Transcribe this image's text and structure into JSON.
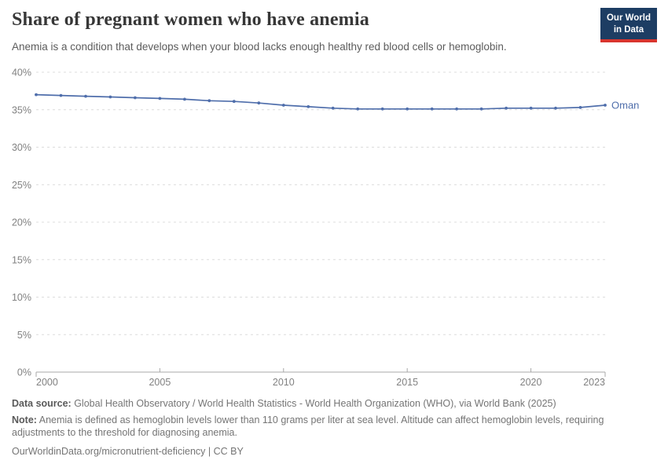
{
  "header": {
    "title": "Share of pregnant women who have anemia",
    "subtitle": "Anemia is a condition that develops when your blood lacks enough healthy red blood cells or hemoglobin.",
    "logo": {
      "line1": "Our World",
      "line2": "in Data"
    }
  },
  "chart_data": {
    "type": "line",
    "title": "Share of pregnant women who have anemia",
    "xlabel": "",
    "ylabel": "",
    "xlim": [
      2000,
      2023
    ],
    "ylim": [
      0,
      40
    ],
    "yticks": [
      0,
      5,
      10,
      15,
      20,
      25,
      30,
      35,
      40
    ],
    "ytick_suffix": "%",
    "xticks": [
      2000,
      2005,
      2010,
      2015,
      2020,
      2023
    ],
    "grid": "horizontal-dashed",
    "legend_position": "end-of-line-label",
    "categories": [
      2000,
      2001,
      2002,
      2003,
      2004,
      2005,
      2006,
      2007,
      2008,
      2009,
      2010,
      2011,
      2012,
      2013,
      2014,
      2015,
      2016,
      2017,
      2018,
      2019,
      2020,
      2021,
      2022,
      2023
    ],
    "series": [
      {
        "name": "Oman",
        "color": "#4f6eab",
        "values": [
          37.0,
          36.9,
          36.8,
          36.7,
          36.6,
          36.5,
          36.4,
          36.2,
          36.1,
          35.9,
          35.6,
          35.4,
          35.2,
          35.1,
          35.1,
          35.1,
          35.1,
          35.1,
          35.1,
          35.2,
          35.2,
          35.2,
          35.3,
          35.6
        ]
      }
    ]
  },
  "footer": {
    "datasource_label": "Data source:",
    "datasource_text": " Global Health Observatory / World Health Statistics - World Health Organization (WHO), via World Bank (2025)",
    "note_label": "Note:",
    "note_text": " Anemia is defined as hemoglobin levels lower than 110 grams per liter at sea level. Altitude can affect hemoglobin levels, requiring adjustments to the threshold for diagnosing anemia.",
    "license": "OurWorldinData.org/micronutrient-deficiency | CC BY"
  },
  "colors": {
    "accent_line": "#4f6eab",
    "gridline": "#dcdcdc",
    "axis_line": "#a8a8a8",
    "tick_label": "#818181",
    "logo_bg": "#1d3d63",
    "logo_stripe": "#d8352e"
  }
}
